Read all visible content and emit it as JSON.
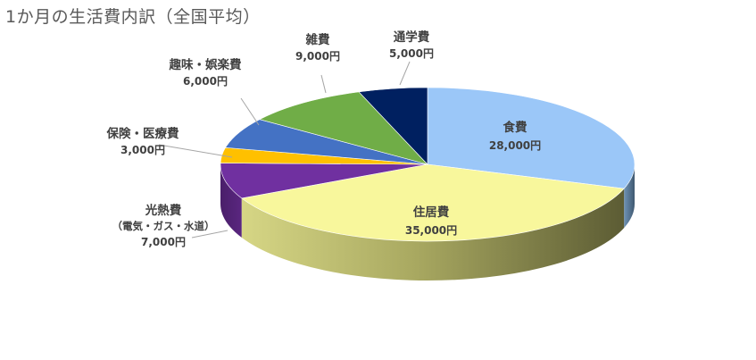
{
  "chart_data": {
    "type": "pie",
    "title": "1か月の生活費内訳（全国平均）",
    "unit": "円",
    "slices": [
      {
        "name": "食費",
        "value": 28000,
        "value_label": "28,000円",
        "color": "#9bc7f8"
      },
      {
        "name": "住居費",
        "value": 35000,
        "value_label": "35,000円",
        "color": "#f8f79c"
      },
      {
        "name": "光熱費",
        "sublabel": "（電気・ガス・水道）",
        "value": 7000,
        "value_label": "7,000円",
        "color": "#7030a0"
      },
      {
        "name": "保険・医療費",
        "value": 3000,
        "value_label": "3,000円",
        "color": "#ffc000"
      },
      {
        "name": "趣味・娯楽費",
        "value": 6000,
        "value_label": "6,000円",
        "color": "#4472c4"
      },
      {
        "name": "雑費",
        "value": 9000,
        "value_label": "9,000円",
        "color": "#70ad47"
      },
      {
        "name": "通学費",
        "value": 5000,
        "value_label": "5,000円",
        "color": "#002060"
      }
    ]
  }
}
